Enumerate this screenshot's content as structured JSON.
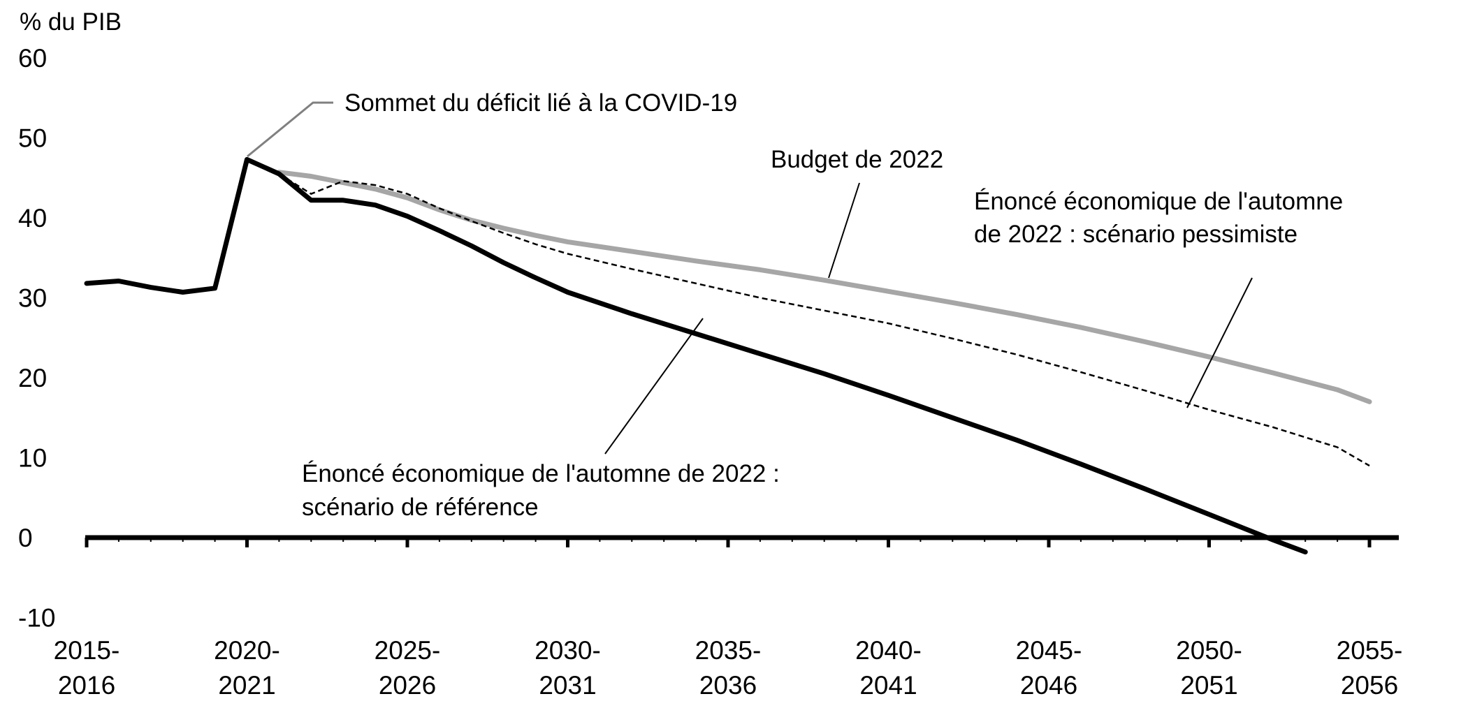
{
  "chart_data": {
    "type": "line",
    "unit_label": "% du PIB",
    "y_range": [
      -10,
      60
    ],
    "y_ticks": [
      -10,
      0,
      10,
      20,
      30,
      40,
      50,
      60
    ],
    "x_range": [
      2015,
      2055
    ],
    "x_ticks": [
      {
        "x": 2015,
        "line1": "2015-",
        "line2": "2016"
      },
      {
        "x": 2020,
        "line1": "2020-",
        "line2": "2021"
      },
      {
        "x": 2025,
        "line1": "2025-",
        "line2": "2026"
      },
      {
        "x": 2030,
        "line1": "2030-",
        "line2": "2031"
      },
      {
        "x": 2035,
        "line1": "2035-",
        "line2": "2036"
      },
      {
        "x": 2040,
        "line1": "2040-",
        "line2": "2041"
      },
      {
        "x": 2045,
        "line1": "2045-",
        "line2": "2046"
      },
      {
        "x": 2050,
        "line1": "2050-",
        "line2": "2051"
      },
      {
        "x": 2055,
        "line1": "2055-",
        "line2": "2056"
      }
    ],
    "grid": false,
    "legend": "none (direct labels)",
    "series": [
      {
        "name": "Budget de 2022",
        "color": "#a6a6a6",
        "style": "solid-thick",
        "points": [
          [
            2021,
            45.7
          ],
          [
            2022,
            45.2
          ],
          [
            2023,
            44.4
          ],
          [
            2024,
            43.6
          ],
          [
            2025,
            42.5
          ],
          [
            2026,
            41.0
          ],
          [
            2027,
            39.7
          ],
          [
            2028,
            38.7
          ],
          [
            2029,
            37.8
          ],
          [
            2030,
            37.0
          ],
          [
            2032,
            35.8
          ],
          [
            2034,
            34.6
          ],
          [
            2036,
            33.5
          ],
          [
            2038,
            32.2
          ],
          [
            2040,
            30.8
          ],
          [
            2042,
            29.4
          ],
          [
            2044,
            27.9
          ],
          [
            2046,
            26.3
          ],
          [
            2048,
            24.5
          ],
          [
            2050,
            22.6
          ],
          [
            2052,
            20.6
          ],
          [
            2054,
            18.5
          ],
          [
            2055,
            17.0
          ]
        ]
      },
      {
        "name": "Énoncé économique de l'automne de 2022 : scénario pessimiste",
        "color": "#000000",
        "style": "dashed",
        "points": [
          [
            2021,
            45.5
          ],
          [
            2022,
            43.0
          ],
          [
            2023,
            44.6
          ],
          [
            2024,
            44.1
          ],
          [
            2025,
            43.0
          ],
          [
            2026,
            41.2
          ],
          [
            2027,
            39.6
          ],
          [
            2028,
            38.1
          ],
          [
            2029,
            36.7
          ],
          [
            2030,
            35.5
          ],
          [
            2032,
            33.6
          ],
          [
            2034,
            31.8
          ],
          [
            2036,
            30.0
          ],
          [
            2038,
            28.4
          ],
          [
            2040,
            26.8
          ],
          [
            2042,
            24.9
          ],
          [
            2044,
            22.9
          ],
          [
            2046,
            20.7
          ],
          [
            2048,
            18.4
          ],
          [
            2050,
            16.0
          ],
          [
            2052,
            13.8
          ],
          [
            2054,
            11.3
          ],
          [
            2055,
            9.0
          ]
        ]
      },
      {
        "name": "Énoncé économique de l'automne de 2022 : scénario de référence",
        "color": "#000000",
        "style": "solid-thick",
        "points": [
          [
            2015,
            31.8
          ],
          [
            2016,
            32.1
          ],
          [
            2017,
            31.3
          ],
          [
            2018,
            30.7
          ],
          [
            2019,
            31.2
          ],
          [
            2020,
            47.3
          ],
          [
            2021,
            45.5
          ],
          [
            2022,
            42.2
          ],
          [
            2023,
            42.2
          ],
          [
            2024,
            41.6
          ],
          [
            2025,
            40.2
          ],
          [
            2026,
            38.4
          ],
          [
            2027,
            36.5
          ],
          [
            2028,
            34.4
          ],
          [
            2029,
            32.5
          ],
          [
            2030,
            30.7
          ],
          [
            2032,
            28.0
          ],
          [
            2034,
            25.5
          ],
          [
            2036,
            23.0
          ],
          [
            2038,
            20.5
          ],
          [
            2040,
            17.8
          ],
          [
            2042,
            15.0
          ],
          [
            2044,
            12.2
          ],
          [
            2046,
            9.2
          ],
          [
            2048,
            6.1
          ],
          [
            2050,
            2.9
          ],
          [
            2052,
            -0.3
          ],
          [
            2053,
            -1.8
          ]
        ]
      }
    ],
    "annotations": [
      {
        "id": "peak",
        "lines": [
          "Sommet du déficit lié à la COVID-19"
        ],
        "color": "#808080",
        "target": [
          2020,
          47.3
        ]
      },
      {
        "id": "budget",
        "lines": [
          "Budget de 2022"
        ],
        "color": "#000000",
        "target": [
          2036.3,
          32.3
        ]
      },
      {
        "id": "pessimiste",
        "lines": [
          "Énoncé économique de l'automne",
          "de 2022 : scénario pessimiste"
        ],
        "color": "#000000",
        "target": [
          2049.7,
          16.6
        ]
      },
      {
        "id": "reference",
        "lines": [
          "Énoncé économique de l'automne de 2022 :",
          "scénario de référence"
        ],
        "color": "#000000",
        "target": [
          2034.2,
          27.0
        ]
      }
    ]
  }
}
